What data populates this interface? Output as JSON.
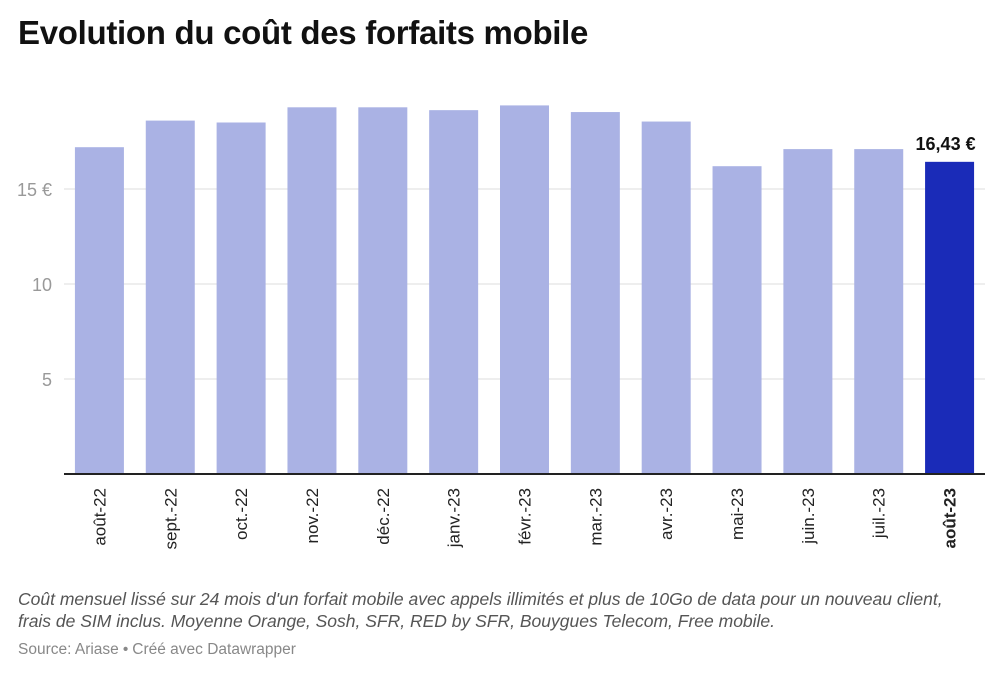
{
  "title": "Evolution du coût des forfaits mobile",
  "note": "Coût mensuel lissé sur 24 mois d'un forfait mobile avec appels illimités et plus de 10Go de data pour un nouveau client, frais de SIM inclus. Moyenne Orange, Sosh, SFR, RED by SFR, Bouygues Telecom, Free mobile.",
  "source": {
    "label": "Source: Ariase",
    "separator": "•",
    "credit": "Créé avec Datawrapper"
  },
  "colors": {
    "bar": "#aab2e4",
    "highlight": "#1a2bb8",
    "grid": "#e3e3e3",
    "axis": "#222222",
    "tick": "#999999"
  },
  "chart_data": {
    "type": "bar",
    "title": "Evolution du coût des forfaits mobile",
    "xlabel": "",
    "ylabel": "",
    "categories": [
      "août-22",
      "sept.-22",
      "oct.-22",
      "nov.-22",
      "déc.-22",
      "janv.-23",
      "févr.-23",
      "mar.-23",
      "avr.-23",
      "mai-23",
      "juin.-23",
      "juil.-23",
      "août-23"
    ],
    "values": [
      17.2,
      18.6,
      18.5,
      19.3,
      19.3,
      19.15,
      19.4,
      19.05,
      18.55,
      16.2,
      17.1,
      17.1,
      16.43
    ],
    "ylim": [
      0,
      19.5
    ],
    "yticks": [
      {
        "value": 5,
        "label": "5"
      },
      {
        "value": 10,
        "label": "10"
      },
      {
        "value": 15,
        "label": "15 €"
      }
    ],
    "highlight_index": 12,
    "annotation": {
      "index": 12,
      "text": "16,43 €"
    },
    "grid": true,
    "legend": "none"
  }
}
